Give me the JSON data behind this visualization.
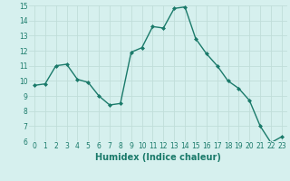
{
  "x": [
    0,
    1,
    2,
    3,
    4,
    5,
    6,
    7,
    8,
    9,
    10,
    11,
    12,
    13,
    14,
    15,
    16,
    17,
    18,
    19,
    20,
    21,
    22,
    23
  ],
  "y": [
    9.7,
    9.8,
    11.0,
    11.1,
    10.1,
    9.9,
    9.0,
    8.4,
    8.5,
    11.9,
    12.2,
    13.6,
    13.5,
    14.8,
    14.9,
    12.8,
    11.8,
    11.0,
    10.0,
    9.5,
    8.7,
    7.0,
    5.9,
    6.3
  ],
  "line_color": "#1a7a6a",
  "marker": "D",
  "marker_size": 2,
  "bg_color": "#d6f0ee",
  "grid_color": "#c0ddd9",
  "xlabel": "Humidex (Indice chaleur)",
  "ylim": [
    6,
    15
  ],
  "yticks": [
    6,
    7,
    8,
    9,
    10,
    11,
    12,
    13,
    14,
    15
  ],
  "xticks": [
    0,
    1,
    2,
    3,
    4,
    5,
    6,
    7,
    8,
    9,
    10,
    11,
    12,
    13,
    14,
    15,
    16,
    17,
    18,
    19,
    20,
    21,
    22,
    23
  ],
  "tick_fontsize": 5.5,
  "xlabel_fontsize": 7,
  "line_width": 1.0
}
